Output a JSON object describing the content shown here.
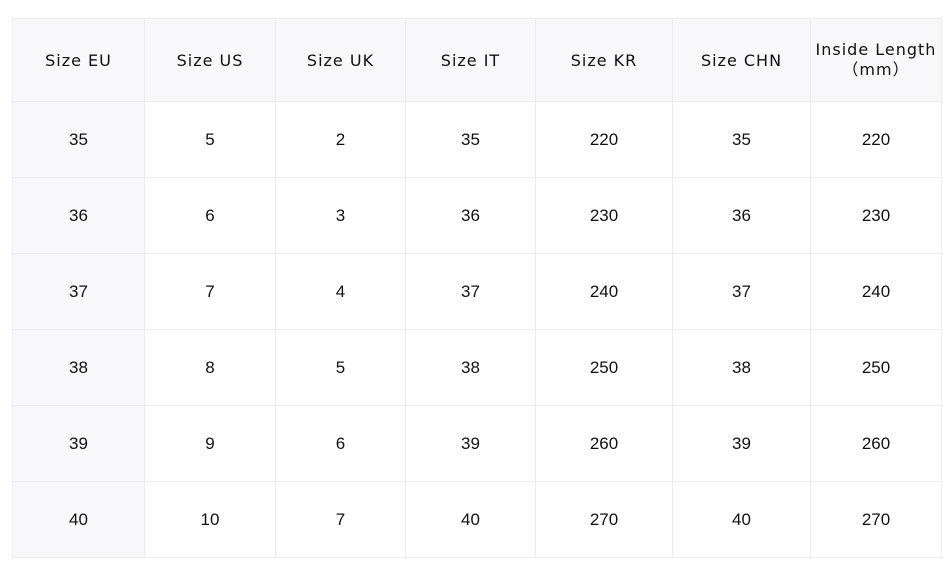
{
  "headers": [
    "Size EU",
    "Size US",
    "Size UK",
    "Size IT",
    "Size KR",
    "Size CHN"
  ],
  "last_header": {
    "line1": "Inside Length",
    "line2": "（mm）"
  },
  "rows": [
    [
      "35",
      "5",
      "2",
      "35",
      "220",
      "35",
      "220"
    ],
    [
      "36",
      "6",
      "3",
      "36",
      "230",
      "36",
      "230"
    ],
    [
      "37",
      "7",
      "4",
      "37",
      "240",
      "37",
      "240"
    ],
    [
      "38",
      "8",
      "5",
      "38",
      "250",
      "38",
      "250"
    ],
    [
      "39",
      "9",
      "6",
      "39",
      "260",
      "39",
      "260"
    ],
    [
      "40",
      "10",
      "7",
      "40",
      "270",
      "40",
      "270"
    ]
  ]
}
